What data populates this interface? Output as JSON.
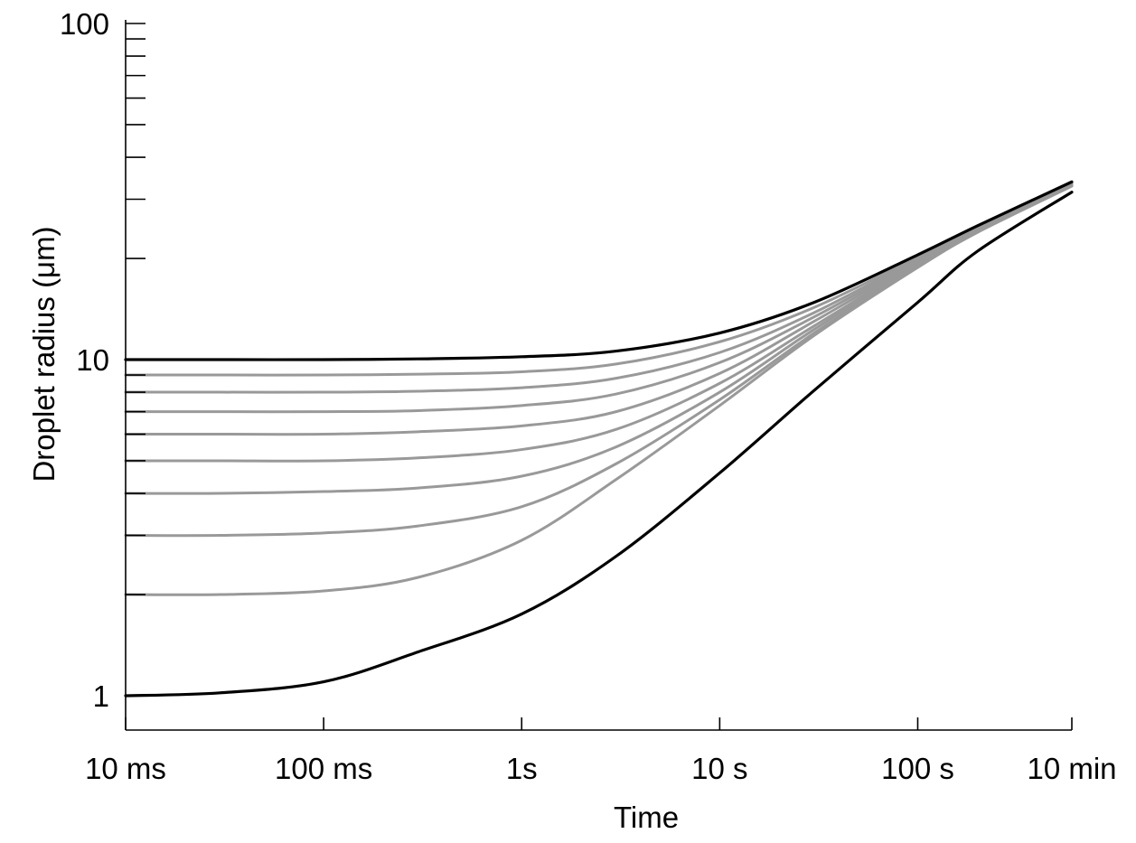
{
  "chart_data": {
    "type": "line",
    "xlabel": "Time",
    "ylabel": "Droplet radius (μm)",
    "x_scale": "log",
    "y_scale": "log",
    "x_unit": "s",
    "y_unit": "μm",
    "xlim": [
      0.01,
      600
    ],
    "ylim": [
      0.8,
      120
    ],
    "grid": false,
    "legend": "none",
    "x_ticks": [
      {
        "value": 0.01,
        "label": "10 ms"
      },
      {
        "value": 0.1,
        "label": "100 ms"
      },
      {
        "value": 1,
        "label": "1s"
      },
      {
        "value": 10,
        "label": "10 s"
      },
      {
        "value": 100,
        "label": "100 s"
      },
      {
        "value": 600,
        "label": "10 min"
      }
    ],
    "y_ticks": [
      {
        "value": 1,
        "label": "1"
      },
      {
        "value": 10,
        "label": "10"
      },
      {
        "value": 100,
        "label": "100"
      }
    ],
    "y_minor_ticks": [
      2,
      3,
      4,
      5,
      6,
      7,
      8,
      9,
      20,
      30,
      40,
      50,
      60,
      70,
      80,
      90
    ],
    "x": [
      0.01,
      0.03,
      0.1,
      0.3,
      1,
      3,
      10,
      30,
      100,
      200,
      600
    ],
    "series": [
      {
        "color": "#000000",
        "values": [
          10.0,
          10.0,
          10.0,
          10.05,
          10.2,
          10.6,
          12.0,
          14.8,
          20.5,
          25.0,
          33.8
        ]
      },
      {
        "color": "#999999",
        "values": [
          9.0,
          9.0,
          9.0,
          9.05,
          9.2,
          9.7,
          11.3,
          14.3,
          20.2,
          24.8,
          33.5
        ]
      },
      {
        "color": "#999999",
        "values": [
          8.0,
          8.0,
          8.0,
          8.05,
          8.25,
          8.8,
          10.5,
          13.8,
          20.0,
          24.6,
          33.4
        ]
      },
      {
        "color": "#999999",
        "values": [
          7.0,
          7.0,
          7.0,
          7.05,
          7.3,
          7.9,
          9.8,
          13.4,
          19.8,
          24.5,
          33.3
        ]
      },
      {
        "color": "#999999",
        "values": [
          6.0,
          6.0,
          6.0,
          6.1,
          6.35,
          7.0,
          9.1,
          13.0,
          19.6,
          24.4,
          33.2
        ]
      },
      {
        "color": "#999999",
        "values": [
          5.0,
          5.0,
          5.0,
          5.1,
          5.4,
          6.2,
          8.5,
          12.6,
          19.4,
          24.3,
          33.1
        ]
      },
      {
        "color": "#999999",
        "values": [
          4.0,
          4.0,
          4.05,
          4.15,
          4.5,
          5.5,
          8.0,
          12.3,
          19.2,
          24.1,
          33.0
        ]
      },
      {
        "color": "#999999",
        "values": [
          3.0,
          3.0,
          3.05,
          3.2,
          3.65,
          4.9,
          7.6,
          12.0,
          19.0,
          24.0,
          32.9
        ]
      },
      {
        "color": "#999999",
        "values": [
          2.0,
          2.0,
          2.05,
          2.25,
          2.9,
          4.4,
          7.3,
          11.8,
          18.8,
          23.9,
          32.8
        ]
      },
      {
        "color": "#000000",
        "values": [
          1.0,
          1.02,
          1.1,
          1.35,
          1.75,
          2.6,
          4.6,
          8.1,
          14.8,
          21.0,
          31.5
        ]
      }
    ]
  }
}
